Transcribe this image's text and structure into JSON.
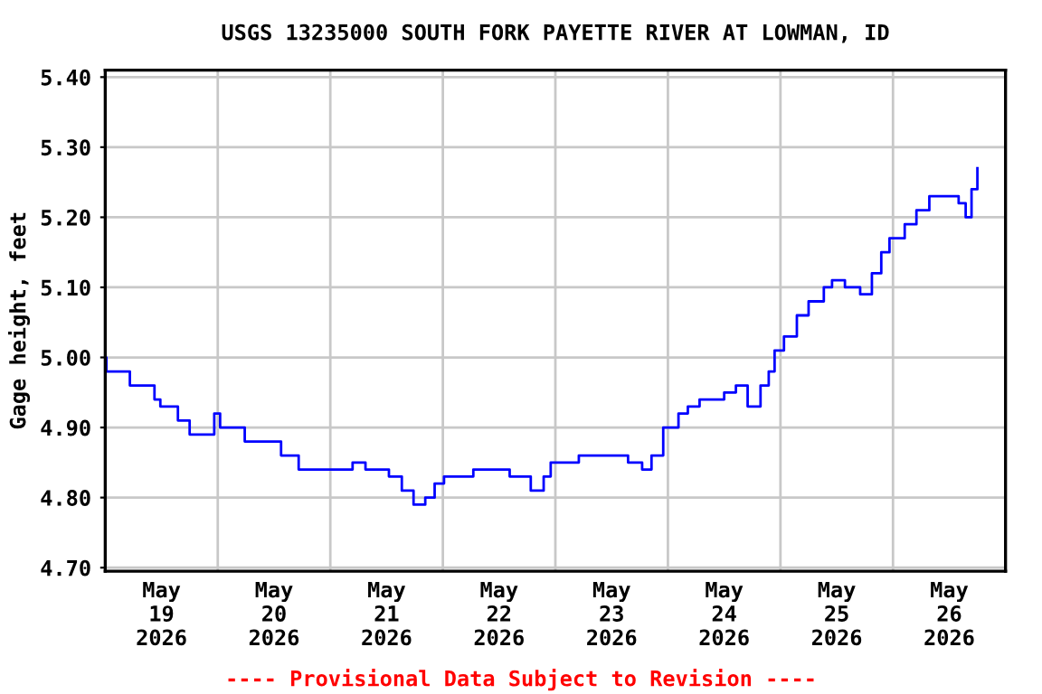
{
  "chart_data": {
    "type": "step",
    "title": "USGS 13235000 SOUTH FORK PAYETTE RIVER AT LOWMAN, ID",
    "ylabel": "Gage height, feet",
    "annotations": [
      "---- Provisional Data Subject to Revision ----"
    ],
    "x": [
      "2026-05-19T00:00",
      "2026-05-19T00:15",
      "2026-05-19T03:15",
      "2026-05-19T05:15",
      "2026-05-19T10:30",
      "2026-05-19T11:45",
      "2026-05-19T15:30",
      "2026-05-19T18:00",
      "2026-05-19T21:15",
      "2026-05-19T23:15",
      "2026-05-20T00:30",
      "2026-05-20T05:45",
      "2026-05-20T09:30",
      "2026-05-20T13:30",
      "2026-05-20T17:15",
      "2026-05-20T19:15",
      "2026-05-20T23:45",
      "2026-05-21T04:45",
      "2026-05-21T07:30",
      "2026-05-21T12:30",
      "2026-05-21T15:15",
      "2026-05-21T17:45",
      "2026-05-21T20:15",
      "2026-05-21T22:15",
      "2026-05-22T00:15",
      "2026-05-22T06:30",
      "2026-05-22T14:15",
      "2026-05-22T18:45",
      "2026-05-22T21:30",
      "2026-05-22T23:00",
      "2026-05-23T05:00",
      "2026-05-23T10:15",
      "2026-05-23T15:30",
      "2026-05-23T18:30",
      "2026-05-23T20:30",
      "2026-05-23T23:00",
      "2026-05-24T02:15",
      "2026-05-24T04:15",
      "2026-05-24T06:45",
      "2026-05-24T12:00",
      "2026-05-24T14:30",
      "2026-05-24T17:00",
      "2026-05-24T19:45",
      "2026-05-24T21:30",
      "2026-05-24T22:45",
      "2026-05-25T00:45",
      "2026-05-25T03:30",
      "2026-05-25T06:00",
      "2026-05-25T09:15",
      "2026-05-25T11:00",
      "2026-05-25T13:45",
      "2026-05-25T17:00",
      "2026-05-25T19:30",
      "2026-05-25T21:30",
      "2026-05-25T23:15",
      "2026-05-26T02:30",
      "2026-05-26T05:00",
      "2026-05-26T07:45",
      "2026-05-26T11:00",
      "2026-05-26T14:00",
      "2026-05-26T15:30",
      "2026-05-26T16:45",
      "2026-05-26T18:00"
    ],
    "series": [
      {
        "color": "#0000ff",
        "values": [
          5.0,
          4.98,
          4.98,
          4.96,
          4.94,
          4.93,
          4.91,
          4.89,
          4.89,
          4.92,
          4.9,
          4.88,
          4.88,
          4.86,
          4.84,
          4.84,
          4.84,
          4.85,
          4.84,
          4.83,
          4.81,
          4.79,
          4.8,
          4.82,
          4.83,
          4.84,
          4.83,
          4.81,
          4.83,
          4.85,
          4.86,
          4.86,
          4.85,
          4.84,
          4.86,
          4.9,
          4.92,
          4.93,
          4.94,
          4.95,
          4.96,
          4.93,
          4.96,
          4.98,
          5.01,
          5.03,
          5.06,
          5.08,
          5.1,
          5.11,
          5.1,
          5.09,
          5.12,
          5.15,
          5.17,
          5.19,
          5.21,
          5.23,
          5.23,
          5.22,
          5.2,
          5.24,
          5.27
        ]
      }
    ],
    "xlim": [
      "2026-05-19T00:00",
      "2026-05-27T00:00"
    ],
    "xticks": [
      {
        "value": "2026-05-19T12:00",
        "label": "May\n19\n2026"
      },
      {
        "value": "2026-05-20T00:00",
        "label": null
      },
      {
        "value": "2026-05-20T12:00",
        "label": "May\n20\n2026"
      },
      {
        "value": "2026-05-21T00:00",
        "label": null
      },
      {
        "value": "2026-05-21T12:00",
        "label": "May\n21\n2026"
      },
      {
        "value": "2026-05-22T00:00",
        "label": null
      },
      {
        "value": "2026-05-22T12:00",
        "label": "May\n22\n2026"
      },
      {
        "value": "2026-05-23T00:00",
        "label": null
      },
      {
        "value": "2026-05-23T12:00",
        "label": "May\n23\n2026"
      },
      {
        "value": "2026-05-24T00:00",
        "label": null
      },
      {
        "value": "2026-05-24T12:00",
        "label": "May\n24\n2026"
      },
      {
        "value": "2026-05-25T00:00",
        "label": null
      },
      {
        "value": "2026-05-25T12:00",
        "label": "May\n25\n2026"
      },
      {
        "value": "2026-05-26T00:00",
        "label": null
      },
      {
        "value": "2026-05-26T12:00",
        "label": "May\n26\n2026"
      }
    ],
    "ylim": [
      4.695,
      5.41
    ],
    "yticks": [
      {
        "value": 4.7,
        "label": "4.70"
      },
      {
        "value": 4.8,
        "label": "4.80"
      },
      {
        "value": 4.9,
        "label": "4.90"
      },
      {
        "value": 5.0,
        "label": "5.00"
      },
      {
        "value": 5.1,
        "label": "5.10"
      },
      {
        "value": 5.2,
        "label": "5.20"
      },
      {
        "value": 5.3,
        "label": "5.30"
      },
      {
        "value": 5.4,
        "label": "5.40"
      }
    ],
    "grid": true,
    "legend": false
  }
}
